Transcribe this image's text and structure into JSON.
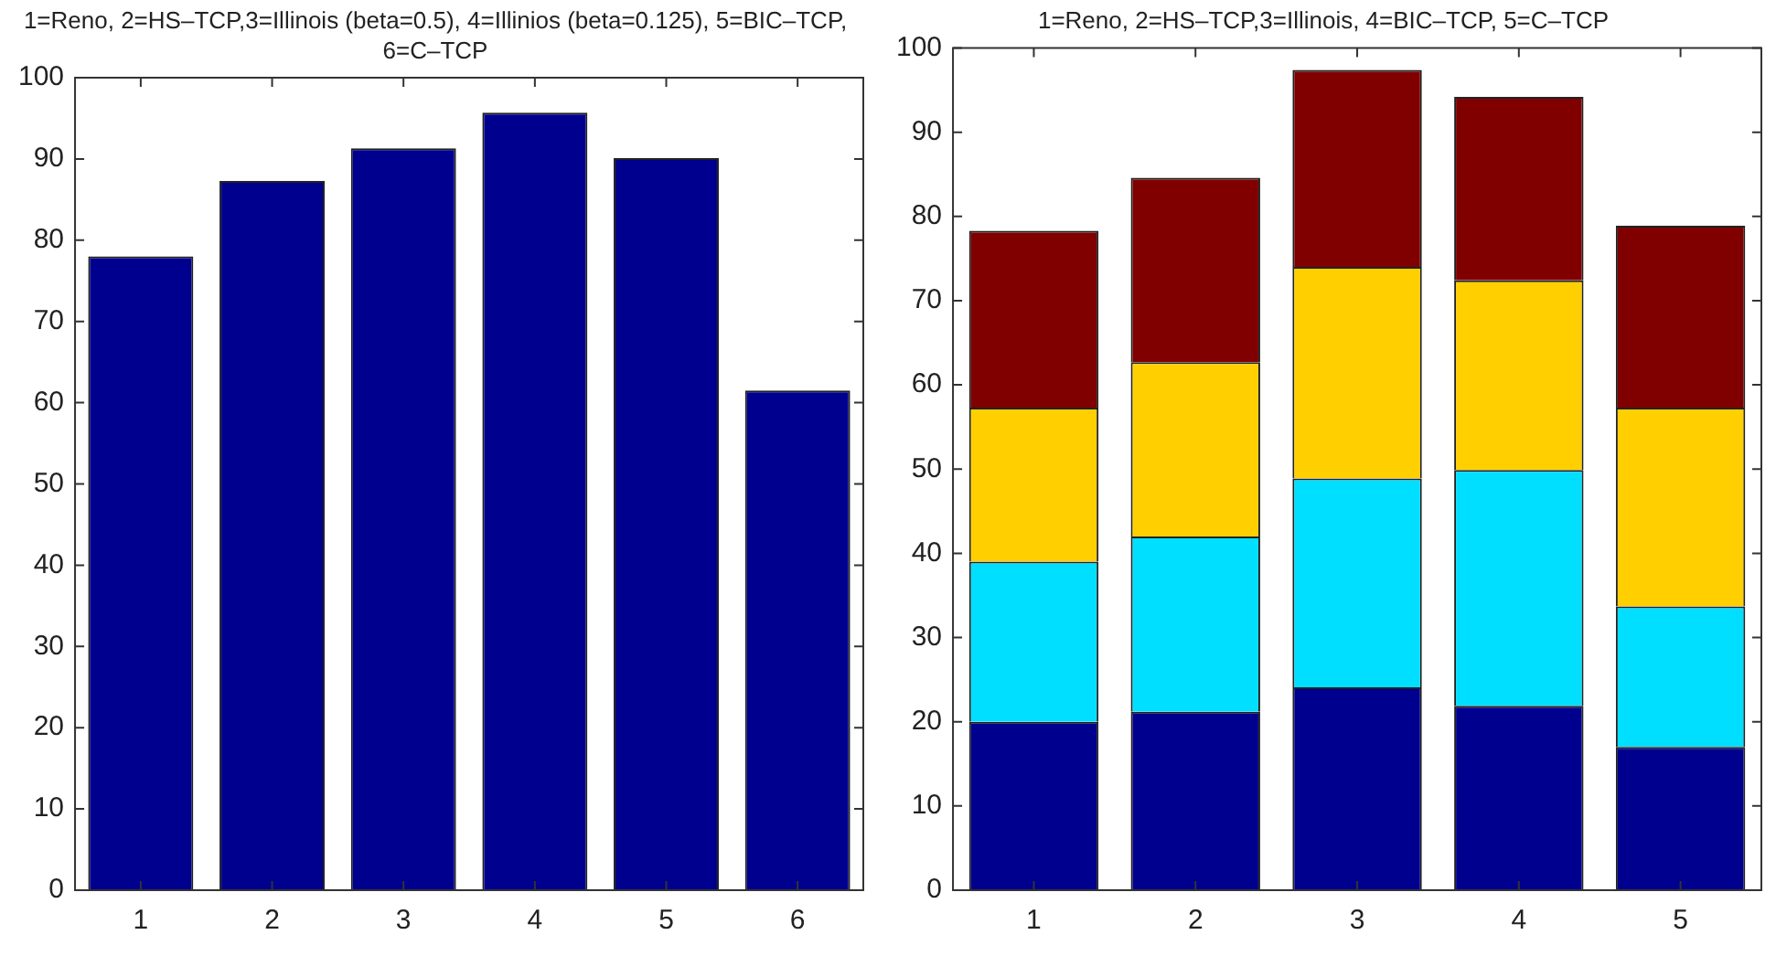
{
  "chart_data": [
    {
      "type": "bar",
      "title": "1=Reno, 2=HS–TCP,3=Illinois (beta=0.5), 4=Illinios (beta=0.125), 5=BIC–TCP, 6=C–TCP",
      "categories": [
        "1",
        "2",
        "3",
        "4",
        "5",
        "6"
      ],
      "values": [
        78,
        87.3,
        91.3,
        95.7,
        90.1,
        61.5
      ],
      "color": "#00008f",
      "ylim": [
        0,
        100
      ],
      "yticks": [
        0,
        10,
        20,
        30,
        40,
        50,
        60,
        70,
        80,
        90,
        100
      ],
      "grid": false
    },
    {
      "type": "bar",
      "title": "1=Reno, 2=HS–TCP,3=Illinois, 4=BIC–TCP, 5=C–TCP",
      "categories": [
        "1",
        "2",
        "3",
        "4",
        "5"
      ],
      "stacked": true,
      "series": [
        {
          "color": "#00008f",
          "values": [
            20,
            21.2,
            24.1,
            21.9,
            17
          ]
        },
        {
          "color": "#00dfff",
          "values": [
            19,
            20.8,
            24.8,
            28,
            16.7
          ]
        },
        {
          "color": "#ffcf00",
          "values": [
            18.3,
            20.7,
            25.1,
            22.5,
            23.6
          ]
        },
        {
          "color": "#800000",
          "values": [
            21,
            21.9,
            23.4,
            21.8,
            21.6
          ]
        }
      ],
      "ylim": [
        0,
        100
      ],
      "yticks": [
        0,
        10,
        20,
        30,
        40,
        50,
        60,
        70,
        80,
        90,
        100
      ],
      "grid": false
    }
  ]
}
